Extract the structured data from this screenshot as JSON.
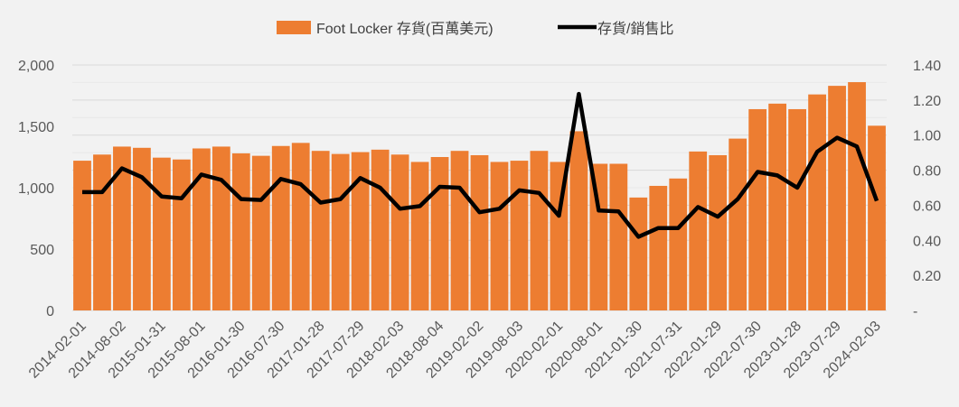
{
  "chart_data": {
    "type": "bar+line",
    "legend": {
      "bar_label": "Foot Locker 存貨(百萬美元)",
      "line_label": "存貨/銷售比",
      "placement": "top-center"
    },
    "colors": {
      "bar": "#ed7d31",
      "line": "#000000",
      "grid": "#d9d9d9",
      "background": "#f2f2f2",
      "tick_text": "#595959"
    },
    "x_tick_labels": [
      "2014-02-01",
      "2014-08-02",
      "2015-01-31",
      "2015-08-01",
      "2016-01-30",
      "2016-07-30",
      "2017-01-28",
      "2017-07-29",
      "2018-02-03",
      "2018-08-04",
      "2019-02-02",
      "2019-08-03",
      "2020-02-01",
      "2020-08-01",
      "2021-01-30",
      "2021-07-31",
      "2022-01-29",
      "2022-07-30",
      "2023-01-28",
      "2023-07-29",
      "2024-02-03"
    ],
    "y_left": {
      "label": "",
      "ylim": [
        0,
        2000
      ],
      "ticks": [
        "0",
        "500",
        "1,000",
        "1,500",
        "2,000"
      ]
    },
    "y_right": {
      "label": "",
      "ylim": [
        0,
        1.4
      ],
      "ticks": [
        "-",
        "0.20",
        "0.40",
        "0.60",
        "0.80",
        "1.00",
        "1.20",
        "1.40"
      ]
    },
    "grid": true,
    "series": [
      {
        "name": "Foot Locker 存貨(百萬美元)",
        "type": "bar",
        "axis": "left",
        "values": [
          1220,
          1270,
          1335,
          1325,
          1245,
          1230,
          1320,
          1335,
          1280,
          1260,
          1340,
          1365,
          1300,
          1275,
          1290,
          1310,
          1270,
          1210,
          1250,
          1300,
          1265,
          1210,
          1220,
          1300,
          1210,
          1460,
          1195,
          1195,
          920,
          1015,
          1075,
          1295,
          1265,
          1400,
          1640,
          1685,
          1640,
          1760,
          1830,
          1860,
          1505
        ]
      },
      {
        "name": "存貨/銷售比",
        "type": "line",
        "axis": "right",
        "values": [
          0.675,
          0.675,
          0.81,
          0.76,
          0.65,
          0.64,
          0.775,
          0.745,
          0.635,
          0.63,
          0.75,
          0.72,
          0.615,
          0.635,
          0.755,
          0.7,
          0.58,
          0.595,
          0.705,
          0.7,
          0.56,
          0.58,
          0.685,
          0.67,
          0.54,
          1.235,
          0.57,
          0.565,
          0.42,
          0.47,
          0.47,
          0.59,
          0.535,
          0.635,
          0.79,
          0.77,
          0.7,
          0.905,
          0.985,
          0.935,
          0.625
        ]
      }
    ]
  }
}
